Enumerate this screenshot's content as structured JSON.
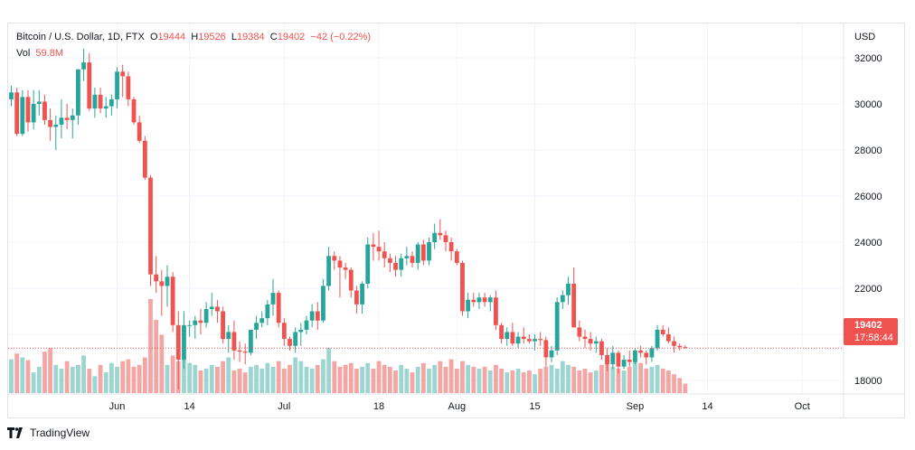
{
  "legend": {
    "symbol": "Bitcoin / U.S. Dollar, 1D, FTX",
    "o_label": "O",
    "o_value": "19444",
    "h_label": "H",
    "h_value": "19526",
    "l_label": "L",
    "l_value": "19384",
    "c_label": "C",
    "c_value": "19402",
    "change": "−42 (−0.22%)",
    "vol_label": "Vol",
    "vol_value": "59.8M"
  },
  "price_tag": {
    "price": "19402",
    "countdown": "17:58:44"
  },
  "footer": {
    "brand": "TradingView"
  },
  "colors": {
    "up": "#26a69a",
    "down": "#ef5350",
    "up_vol": "#9dd6d1",
    "down_vol": "#f4a6a5",
    "grid": "#f0f3fa",
    "text": "#131722"
  },
  "chart_data": {
    "type": "candlestick",
    "yaxis_unit": "USD",
    "ylim": [
      17000,
      33000
    ],
    "y_ticks": [
      18000,
      20000,
      22000,
      24000,
      26000,
      28000,
      30000,
      32000
    ],
    "x_ticks": [
      {
        "label": "Jun",
        "index": 19
      },
      {
        "label": "14",
        "index": 32
      },
      {
        "label": "Jul",
        "index": 49
      },
      {
        "label": "18",
        "index": 66
      },
      {
        "label": "Aug",
        "index": 80
      },
      {
        "label": "15",
        "index": 94
      },
      {
        "label": "Sep",
        "index": 112
      },
      {
        "label": "14",
        "index": 125
      },
      {
        "label": "Oct",
        "index": 142
      }
    ],
    "grid": true,
    "last_price_line": 19402,
    "ohlc": [
      [
        30200,
        30800,
        29900,
        30500
      ],
      [
        30500,
        30700,
        28600,
        28700
      ],
      [
        28700,
        30600,
        28600,
        30300
      ],
      [
        30300,
        30600,
        28800,
        29200
      ],
      [
        29200,
        30600,
        28900,
        30000
      ],
      [
        30000,
        30600,
        29500,
        30100
      ],
      [
        30100,
        30400,
        29100,
        29300
      ],
      [
        29300,
        29800,
        28400,
        29000
      ],
      [
        29000,
        29500,
        28000,
        29100
      ],
      [
        29100,
        30200,
        28500,
        29400
      ],
      [
        29400,
        30000,
        28900,
        29300
      ],
      [
        29300,
        29800,
        28500,
        29500
      ],
      [
        29500,
        31500,
        29100,
        31500
      ],
      [
        31500,
        32400,
        31000,
        31800
      ],
      [
        31800,
        32200,
        29700,
        29800
      ],
      [
        29800,
        30700,
        29400,
        30400
      ],
      [
        30400,
        30700,
        29600,
        29800
      ],
      [
        29800,
        30300,
        29400,
        29900
      ],
      [
        29900,
        30400,
        29500,
        30200
      ],
      [
        30200,
        31600,
        29800,
        31400
      ],
      [
        31400,
        31700,
        30300,
        31200
      ],
      [
        31200,
        31400,
        29900,
        30200
      ],
      [
        30200,
        30300,
        29100,
        29200
      ],
      [
        29200,
        29500,
        28300,
        28400
      ],
      [
        28400,
        28600,
        26700,
        26800
      ],
      [
        26800,
        26900,
        22100,
        22600
      ],
      [
        22600,
        23400,
        21800,
        22300
      ],
      [
        22300,
        22800,
        20800,
        22100
      ],
      [
        22100,
        23000,
        21200,
        22500
      ],
      [
        22500,
        22700,
        20100,
        20400
      ],
      [
        20400,
        21000,
        17600,
        18900
      ],
      [
        18900,
        21000,
        18500,
        20400
      ],
      [
        20400,
        20600,
        19900,
        20400
      ],
      [
        20400,
        20800,
        19800,
        20600
      ],
      [
        20600,
        21100,
        20000,
        20500
      ],
      [
        20500,
        21400,
        20300,
        21100
      ],
      [
        21100,
        21800,
        20800,
        21200
      ],
      [
        21200,
        21500,
        20500,
        21000
      ],
      [
        21000,
        21200,
        19600,
        19800
      ],
      [
        19800,
        20400,
        19200,
        20100
      ],
      [
        20100,
        20600,
        18900,
        19300
      ],
      [
        19300,
        19700,
        18800,
        19250
      ],
      [
        19250,
        19600,
        18700,
        19200
      ],
      [
        19200,
        20200,
        19100,
        20200
      ],
      [
        20200,
        20800,
        19800,
        20500
      ],
      [
        20500,
        21000,
        20300,
        20700
      ],
      [
        20700,
        21500,
        20400,
        21300
      ],
      [
        21300,
        22400,
        20800,
        21800
      ],
      [
        21800,
        21900,
        20300,
        20500
      ],
      [
        20500,
        20700,
        19500,
        19800
      ],
      [
        19800,
        19900,
        19300,
        19500
      ],
      [
        19500,
        20300,
        19200,
        20100
      ],
      [
        20100,
        20500,
        19500,
        20200
      ],
      [
        20200,
        20800,
        20000,
        20600
      ],
      [
        20600,
        21300,
        20300,
        21000
      ],
      [
        21000,
        21400,
        20200,
        20600
      ],
      [
        20600,
        22400,
        20500,
        22100
      ],
      [
        22100,
        23800,
        21900,
        23400
      ],
      [
        23400,
        23600,
        22800,
        23200
      ],
      [
        23200,
        23400,
        21600,
        22900
      ],
      [
        22900,
        23100,
        22400,
        22800
      ],
      [
        22800,
        22900,
        21600,
        21900
      ],
      [
        21900,
        22100,
        20900,
        21300
      ],
      [
        21300,
        22300,
        20900,
        22200
      ],
      [
        22200,
        24200,
        22000,
        23900
      ],
      [
        23900,
        24400,
        23200,
        23800
      ],
      [
        23800,
        24500,
        23200,
        23600
      ],
      [
        23600,
        24000,
        22900,
        23300
      ],
      [
        23300,
        23500,
        22700,
        23100
      ],
      [
        23100,
        23400,
        22500,
        22800
      ],
      [
        22800,
        23500,
        22500,
        23300
      ],
      [
        23300,
        23800,
        23000,
        23400
      ],
      [
        23400,
        23600,
        22900,
        23100
      ],
      [
        23100,
        24000,
        22800,
        23900
      ],
      [
        23900,
        24100,
        23000,
        23200
      ],
      [
        23200,
        24200,
        23000,
        24000
      ],
      [
        24000,
        24800,
        23700,
        24400
      ],
      [
        24400,
        25000,
        24100,
        24300
      ],
      [
        24300,
        24500,
        23600,
        24000
      ],
      [
        24000,
        24200,
        23200,
        23600
      ],
      [
        23600,
        23700,
        23000,
        23100
      ],
      [
        23100,
        23200,
        20800,
        21000
      ],
      [
        21000,
        21800,
        20700,
        21500
      ],
      [
        21500,
        21800,
        21200,
        21400
      ],
      [
        21400,
        21800,
        21100,
        21600
      ],
      [
        21600,
        21800,
        21200,
        21400
      ],
      [
        21400,
        21700,
        21000,
        21600
      ],
      [
        21600,
        21900,
        20200,
        20400
      ],
      [
        20400,
        20500,
        19600,
        19800
      ],
      [
        19800,
        20300,
        19500,
        20100
      ],
      [
        20100,
        20500,
        19500,
        19600
      ],
      [
        19600,
        20100,
        19400,
        19900
      ],
      [
        19900,
        20300,
        19600,
        19800
      ],
      [
        19800,
        20000,
        19600,
        19700
      ],
      [
        19700,
        20000,
        19300,
        19800
      ],
      [
        19800,
        20100,
        19500,
        19750
      ],
      [
        19750,
        19900,
        18600,
        19000
      ],
      [
        19000,
        19500,
        18800,
        19300
      ],
      [
        19300,
        21600,
        19100,
        21400
      ],
      [
        21400,
        21900,
        21100,
        21700
      ],
      [
        21700,
        22500,
        21300,
        22200
      ],
      [
        22200,
        22900,
        20300,
        20300
      ],
      [
        20300,
        20600,
        19700,
        19900
      ],
      [
        19900,
        20200,
        19400,
        19800
      ],
      [
        19800,
        20100,
        19300,
        19600
      ],
      [
        19600,
        19900,
        19200,
        19700
      ],
      [
        19700,
        19800,
        18900,
        19100
      ],
      [
        19100,
        19400,
        18400,
        18700
      ],
      [
        18700,
        19500,
        18500,
        19200
      ],
      [
        19200,
        19300,
        18300,
        18600
      ],
      [
        18600,
        19100,
        18500,
        18900
      ],
      [
        18900,
        19300,
        18600,
        18800
      ],
      [
        18800,
        19400,
        18700,
        19300
      ],
      [
        19300,
        19500,
        19000,
        19200
      ],
      [
        19200,
        19300,
        18700,
        19000
      ],
      [
        19000,
        19500,
        18800,
        19400
      ],
      [
        19400,
        20400,
        19300,
        20200
      ],
      [
        20200,
        20400,
        19900,
        20000
      ],
      [
        20000,
        20300,
        19600,
        19700
      ],
      [
        19700,
        19900,
        19200,
        19500
      ],
      [
        19500,
        19600,
        19300,
        19440
      ],
      [
        19444,
        19526,
        19384,
        19402
      ]
    ],
    "volume": [
      0.36,
      0.42,
      0.38,
      0.35,
      0.22,
      0.28,
      0.44,
      0.48,
      0.3,
      0.26,
      0.34,
      0.28,
      0.3,
      0.4,
      0.26,
      0.18,
      0.3,
      0.22,
      0.32,
      0.28,
      0.34,
      0.36,
      0.28,
      0.3,
      0.38,
      1.0,
      0.78,
      0.62,
      0.3,
      0.4,
      0.34,
      0.36,
      0.32,
      0.3,
      0.24,
      0.26,
      0.3,
      0.28,
      0.34,
      0.38,
      0.24,
      0.26,
      0.22,
      0.28,
      0.3,
      0.26,
      0.32,
      0.28,
      0.34,
      0.26,
      0.3,
      0.38,
      0.34,
      0.28,
      0.26,
      0.3,
      0.36,
      0.48,
      0.34,
      0.28,
      0.3,
      0.32,
      0.26,
      0.28,
      0.32,
      0.26,
      0.34,
      0.3,
      0.28,
      0.24,
      0.3,
      0.26,
      0.22,
      0.28,
      0.32,
      0.26,
      0.3,
      0.34,
      0.28,
      0.36,
      0.26,
      0.34,
      0.3,
      0.28,
      0.26,
      0.28,
      0.24,
      0.3,
      0.26,
      0.22,
      0.24,
      0.26,
      0.22,
      0.24,
      0.2,
      0.26,
      0.28,
      0.3,
      0.26,
      0.34,
      0.3,
      0.28,
      0.24,
      0.26,
      0.22,
      0.24,
      0.3,
      0.36,
      0.28,
      0.26,
      0.24,
      0.28,
      0.34,
      0.32,
      0.26,
      0.28,
      0.3,
      0.26,
      0.24,
      0.2,
      0.16,
      0.1
    ]
  }
}
